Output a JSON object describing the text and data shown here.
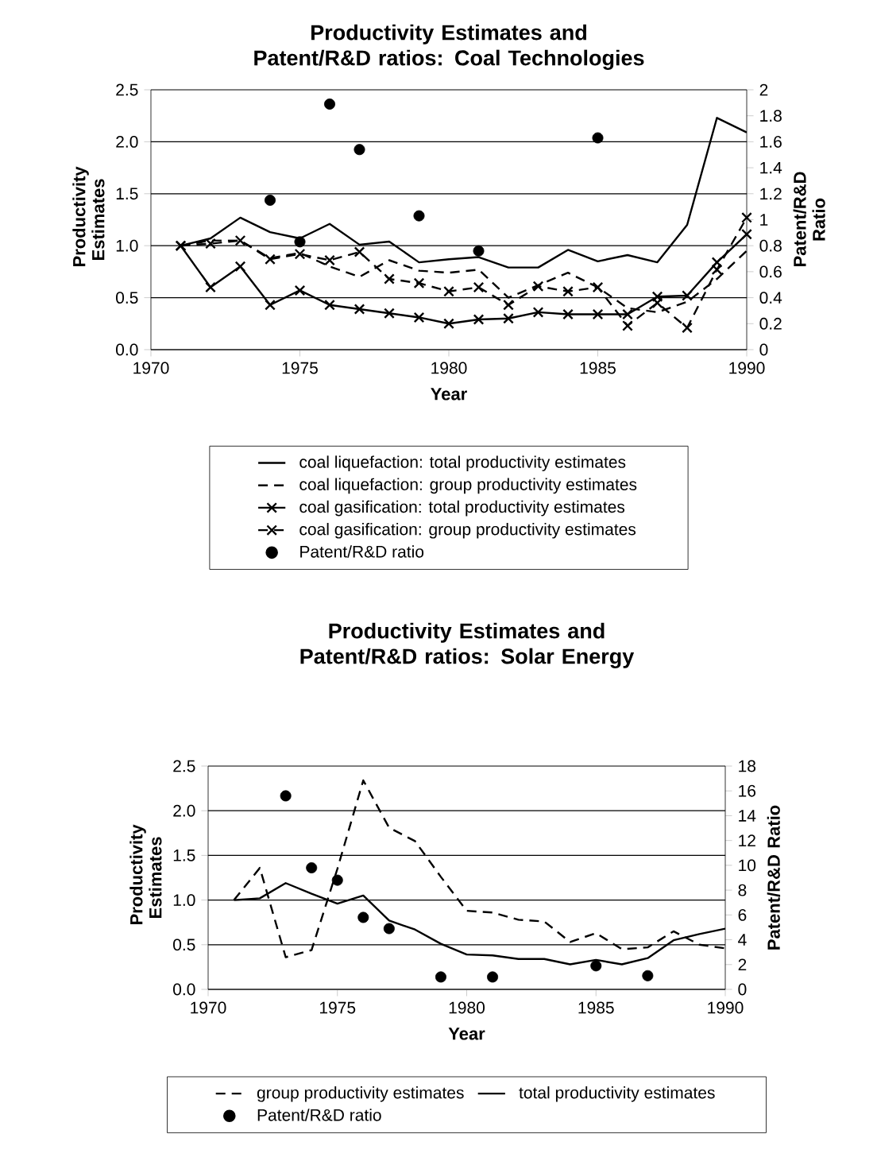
{
  "chart_data": [
    {
      "type": "line",
      "title": "Productivity Estimates and Patent/R&D ratios: Coal Technologies",
      "xlabel": "Year",
      "ylabel": "Productivity Estimates",
      "y2label": "Patent/R&D Ratio",
      "x": [
        1971,
        1972,
        1973,
        1974,
        1975,
        1976,
        1977,
        1978,
        1979,
        1980,
        1981,
        1982,
        1983,
        1984,
        1985,
        1986,
        1987,
        1988,
        1989,
        1990
      ],
      "xlim": [
        1970,
        1990
      ],
      "xticks": [
        1970,
        1975,
        1980,
        1985,
        1990
      ],
      "ylim": [
        0,
        2.5
      ],
      "yticks": [
        {
          "value": 0,
          "label": "0.0"
        },
        {
          "value": 0.5,
          "label": "0.5"
        },
        {
          "value": 1,
          "label": "1.0"
        },
        {
          "value": 1.5,
          "label": "1.5"
        },
        {
          "value": 2,
          "label": "2.0"
        },
        {
          "value": 2.5,
          "label": "2.5"
        }
      ],
      "y2lim": [
        0,
        2
      ],
      "y2ticks": [
        0,
        0.2,
        0.4,
        0.6,
        0.8,
        1,
        1.2,
        1.4,
        1.6,
        1.8,
        2
      ],
      "grid": "y",
      "legend": "bottom",
      "series": [
        {
          "name": "coal liquefaction: total productivity estimates",
          "color": "#000000",
          "marker": "none",
          "line_style": "solid",
          "values": [
            1.0,
            1.07,
            1.27,
            1.13,
            1.07,
            1.21,
            1.01,
            1.04,
            0.84,
            0.87,
            0.89,
            0.79,
            0.79,
            0.96,
            0.85,
            0.91,
            0.84,
            1.2,
            2.23,
            2.09
          ]
        },
        {
          "name": "coal liquefaction: group productivity estimates",
          "color": "#000000",
          "marker": "none",
          "line_style": "dashed",
          "values": [
            1.0,
            1.05,
            1.05,
            0.88,
            0.93,
            0.8,
            0.7,
            0.86,
            0.76,
            0.74,
            0.77,
            0.5,
            0.62,
            0.74,
            0.6,
            0.4,
            0.36,
            0.46,
            0.68,
            0.95
          ]
        },
        {
          "name": "coal gasification: total productivity estimates",
          "color": "#000000",
          "marker": "cross",
          "line_style": "solid",
          "values": [
            1.0,
            0.6,
            0.8,
            0.43,
            0.57,
            0.43,
            0.39,
            0.35,
            0.31,
            0.25,
            0.29,
            0.3,
            0.36,
            0.34,
            0.34,
            0.34,
            0.51,
            0.52,
            0.84,
            1.11
          ]
        },
        {
          "name": "coal gasification: group productivity estimates",
          "color": "#000000",
          "marker": "cross",
          "line_style": "dashed",
          "values": [
            1.0,
            1.02,
            1.05,
            0.87,
            0.92,
            0.86,
            0.94,
            0.68,
            0.64,
            0.56,
            0.6,
            0.43,
            0.61,
            0.56,
            0.6,
            0.23,
            0.45,
            0.21,
            0.77,
            1.27
          ]
        },
        {
          "name": "Patent/R&D ratio",
          "type": "scatter",
          "axis": "y2",
          "color": "#000000",
          "marker": "circle",
          "x": [
            1974,
            1975,
            1976,
            1977,
            1979,
            1981,
            1985
          ],
          "values": [
            1.15,
            0.83,
            1.89,
            1.54,
            1.03,
            0.76,
            1.63
          ]
        }
      ]
    },
    {
      "type": "line",
      "title": "Productivity Estimates and Patent/R&D ratios: Solar Energy",
      "xlabel": "Year",
      "ylabel": "Productivity Estimates",
      "y2label": "Patent/R&D Ratio",
      "x": [
        1971,
        1972,
        1973,
        1974,
        1975,
        1976,
        1977,
        1978,
        1979,
        1980,
        1981,
        1982,
        1983,
        1984,
        1985,
        1986,
        1987,
        1988,
        1989,
        1990
      ],
      "xlim": [
        1970,
        1990
      ],
      "xticks": [
        1970,
        1975,
        1980,
        1985,
        1990
      ],
      "ylim": [
        0,
        2.5
      ],
      "yticks": [
        {
          "value": 0,
          "label": "0.0"
        },
        {
          "value": 0.5,
          "label": "0.5"
        },
        {
          "value": 1,
          "label": "1.0"
        },
        {
          "value": 1.5,
          "label": "1.5"
        },
        {
          "value": 2,
          "label": "2.0"
        },
        {
          "value": 2.5,
          "label": "2.5"
        }
      ],
      "y2lim": [
        0,
        18
      ],
      "y2ticks": [
        0,
        2,
        4,
        6,
        8,
        10,
        12,
        14,
        16,
        18
      ],
      "grid": "y",
      "legend": "bottom",
      "series": [
        {
          "name": "group productivity estimates",
          "color": "#000000",
          "marker": "none",
          "line_style": "dashed",
          "values": [
            1.0,
            1.36,
            0.36,
            0.44,
            1.35,
            2.34,
            1.81,
            1.66,
            1.26,
            0.88,
            0.86,
            0.78,
            0.76,
            0.53,
            0.63,
            0.45,
            0.47,
            0.65,
            0.5,
            0.46
          ]
        },
        {
          "name": "total productivity estimates",
          "color": "#000000",
          "marker": "none",
          "line_style": "solid",
          "values": [
            1.0,
            1.02,
            1.19,
            1.07,
            0.96,
            1.05,
            0.77,
            0.67,
            0.51,
            0.39,
            0.38,
            0.34,
            0.34,
            0.28,
            0.33,
            0.28,
            0.35,
            0.55,
            0.62,
            0.68
          ]
        },
        {
          "name": "Patent/R&D ratio",
          "type": "scatter",
          "axis": "y2",
          "color": "#000000",
          "marker": "circle",
          "x": [
            1973,
            1974,
            1975,
            1976,
            1977,
            1979,
            1981,
            1985,
            1987
          ],
          "values": [
            15.6,
            9.8,
            8.8,
            5.8,
            4.9,
            1.0,
            1.0,
            1.9,
            1.1
          ]
        }
      ]
    }
  ]
}
